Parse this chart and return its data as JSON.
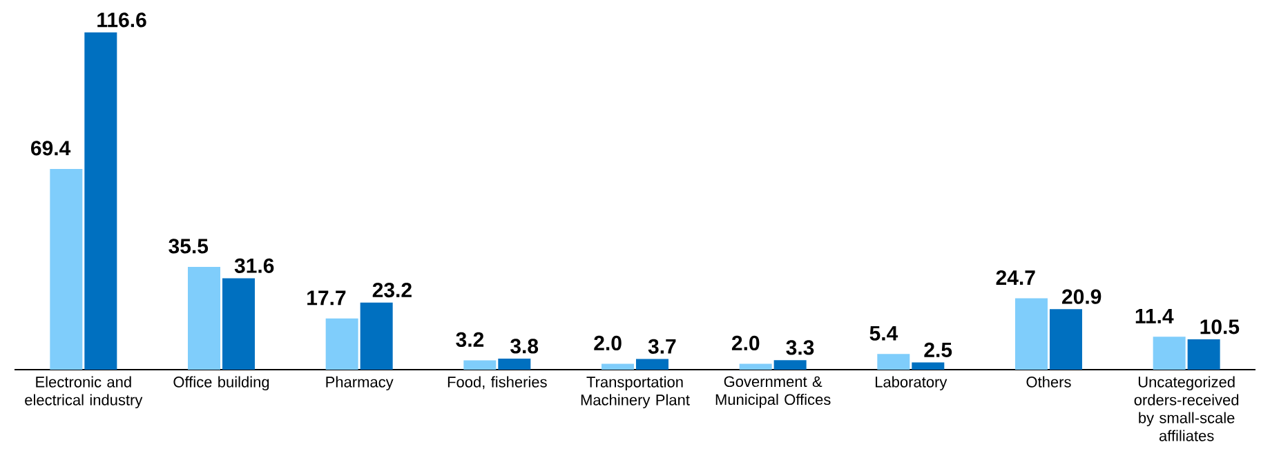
{
  "chart_data": {
    "type": "bar",
    "categories": [
      "Electronic and electrical industry",
      "Office building",
      "Pharmacy",
      "Food, fisheries",
      "Transportation Machinery Plant",
      "Government & Municipal Offices",
      "Laboratory",
      "Others",
      "Uncategorized orders-received by small-scale affiliates"
    ],
    "series": [
      {
        "color": "#7fcdfb",
        "values": [
          69.4,
          35.5,
          17.7,
          3.2,
          2.0,
          2.0,
          5.4,
          24.7,
          11.4
        ],
        "value_labels": [
          "69.4",
          "35.5",
          "17.7",
          "3.2",
          "2.0",
          "2.0",
          "5.4",
          "24.7",
          "11.4"
        ]
      },
      {
        "color": "#0070c0",
        "values": [
          116.6,
          31.6,
          23.2,
          3.8,
          3.7,
          3.3,
          2.5,
          20.9,
          10.5
        ],
        "value_labels": [
          "116.6",
          "31.6",
          "23.2",
          "3.8",
          "3.7",
          "3.3",
          "2.5",
          "20.9",
          "10.5"
        ]
      }
    ]
  }
}
